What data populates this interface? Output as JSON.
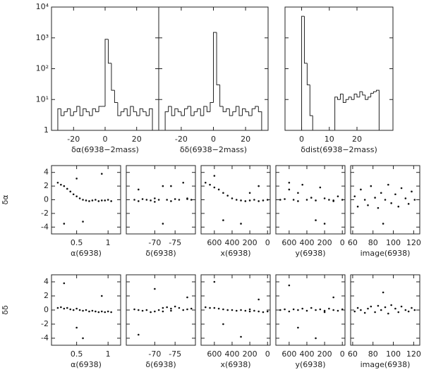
{
  "chart_data": [
    {
      "type": "histogram",
      "xlabel": "δα(6938−2mass)",
      "log_y": true,
      "bins": [
        -30,
        -28,
        -26,
        -24,
        -22,
        -20,
        -18,
        -16,
        -14,
        -12,
        -10,
        -8,
        -6,
        -4,
        -2,
        0,
        2,
        4,
        6,
        8,
        10,
        12,
        14,
        16,
        18,
        20,
        22,
        24,
        26,
        28,
        30
      ],
      "values": [
        5,
        3,
        4,
        5,
        3,
        4,
        6,
        3,
        5,
        4,
        3,
        5,
        4,
        6,
        6,
        900,
        150,
        20,
        8,
        3,
        4,
        5,
        3,
        6,
        4,
        3,
        5,
        4,
        3,
        5
      ],
      "xlim": [
        -34,
        34
      ],
      "xticks": [
        -20,
        0,
        20
      ],
      "ylim": [
        1,
        10000
      ],
      "yticks": [
        1,
        {
          "value": 10,
          "label": "10¹"
        },
        {
          "value": 100,
          "label": "10²"
        },
        {
          "value": 1000,
          "label": "10³"
        },
        {
          "value": 10000,
          "label": "10⁴"
        }
      ]
    },
    {
      "type": "histogram",
      "xlabel": "δδ(6938−2mass)",
      "log_y": true,
      "bins": [
        -30,
        -28,
        -26,
        -24,
        -22,
        -20,
        -18,
        -16,
        -14,
        -12,
        -10,
        -8,
        -6,
        -4,
        -2,
        0,
        2,
        4,
        6,
        8,
        10,
        12,
        14,
        16,
        18,
        20,
        22,
        24,
        26,
        28,
        30
      ],
      "values": [
        4,
        6,
        3,
        5,
        4,
        3,
        5,
        6,
        3,
        4,
        5,
        3,
        6,
        4,
        8,
        1500,
        30,
        6,
        4,
        5,
        3,
        4,
        6,
        3,
        5,
        4,
        3,
        5,
        6,
        4
      ],
      "xlim": [
        -34,
        34
      ],
      "xticks": [
        -20,
        0,
        20
      ],
      "ylim": [
        1,
        10000
      ],
      "yticks": [
        1,
        {
          "value": 10,
          "label": "10¹"
        },
        {
          "value": 100,
          "label": "10²"
        },
        {
          "value": 1000,
          "label": "10³"
        },
        {
          "value": 10000,
          "label": "10⁴"
        }
      ]
    },
    {
      "type": "histogram",
      "xlabel": "δdist(6938−2mass)",
      "log_y": true,
      "bins": [
        -3,
        -2,
        -1,
        0,
        1,
        2,
        3,
        4,
        5,
        6,
        7,
        8,
        9,
        10,
        11,
        12,
        13,
        14,
        15,
        16,
        17,
        18,
        19,
        20,
        21,
        22,
        23,
        24,
        25,
        26,
        27,
        28
      ],
      "values": [
        1,
        1,
        1,
        5000,
        150,
        30,
        3,
        1,
        1,
        1,
        1,
        1,
        1,
        1,
        1,
        12,
        10,
        15,
        8,
        10,
        12,
        10,
        15,
        12,
        18,
        14,
        10,
        12,
        16,
        18,
        20
      ],
      "xlim": [
        -6,
        33
      ],
      "xticks": [
        0,
        10,
        20
      ],
      "ylim": [
        1,
        10000
      ],
      "yticks": [
        1,
        {
          "value": 10,
          "label": "10¹"
        },
        {
          "value": 100,
          "label": "10²"
        },
        {
          "value": 1000,
          "label": "10³"
        },
        {
          "value": 10000,
          "label": "10⁴"
        }
      ]
    },
    {
      "type": "scatter",
      "xlabel": "α(6938)",
      "ylabel": "δα",
      "x": [
        0.2,
        0.25,
        0.3,
        0.35,
        0.4,
        0.45,
        0.5,
        0.55,
        0.6,
        0.65,
        0.7,
        0.75,
        0.8,
        0.85,
        0.9,
        0.95,
        1.0,
        1.05,
        0.3,
        0.6,
        0.9,
        0.5
      ],
      "values": [
        2.5,
        2.2,
        2.0,
        1.6,
        1.2,
        0.8,
        0.5,
        0.2,
        0.0,
        -0.1,
        -0.2,
        -0.1,
        0,
        -0.2,
        -0.1,
        -0.1,
        0,
        -0.2,
        -3.5,
        -3.2,
        3.8,
        3.1
      ],
      "xlim": [
        0.1,
        1.2
      ],
      "xticks": [
        0.5,
        1
      ],
      "ylim": [
        -5,
        5
      ],
      "yticks": [
        -4,
        -2,
        0,
        2,
        4
      ]
    },
    {
      "type": "scatter",
      "xlabel": "δ(6938)",
      "x": [
        -65,
        -66,
        -67,
        -68,
        -69,
        -70,
        -71,
        -72,
        -73,
        -74,
        -75,
        -76,
        -77,
        -78,
        -79,
        -66,
        -70,
        -74,
        -78,
        -72
      ],
      "values": [
        0,
        -0.2,
        0.1,
        0,
        -0.1,
        0.2,
        0,
        2,
        0,
        -0.2,
        0.1,
        0,
        2.5,
        0.1,
        0,
        1.5,
        -0.3,
        2,
        0.2,
        -3.5
      ],
      "xlim": [
        -63,
        -80
      ],
      "xticks": [
        -70,
        -75
      ],
      "ylim": [
        -5,
        5
      ],
      "yticks": [
        -4,
        -2,
        0,
        2,
        4
      ]
    },
    {
      "type": "scatter",
      "xlabel": "x(6938)",
      "x": [
        700,
        650,
        600,
        550,
        500,
        450,
        400,
        350,
        300,
        250,
        200,
        150,
        100,
        50,
        0,
        600,
        300,
        100,
        500,
        200
      ],
      "values": [
        2.5,
        2.2,
        1.8,
        1.5,
        1.0,
        0.6,
        0.2,
        0,
        -0.1,
        -0.2,
        -0.1,
        0,
        -0.2,
        -0.1,
        0,
        3.5,
        -3.5,
        2.0,
        -3.0,
        1.0
      ],
      "xlim": [
        750,
        -30
      ],
      "xticks": [
        600,
        400,
        200,
        0
      ],
      "ylim": [
        -5,
        5
      ],
      "yticks": [
        -4,
        -2,
        0,
        2,
        4
      ]
    },
    {
      "type": "scatter",
      "xlabel": "y(6938)",
      "x": [
        700,
        650,
        600,
        550,
        500,
        450,
        400,
        350,
        300,
        250,
        200,
        150,
        100,
        50,
        0,
        600,
        300,
        100,
        500,
        200
      ],
      "values": [
        0,
        0.1,
        1.5,
        0,
        -0.2,
        2.2,
        0,
        0.3,
        -0.1,
        1.8,
        0.2,
        0,
        -0.1,
        0.5,
        0,
        2.5,
        -3,
        -0.2,
        1,
        -3.5
      ],
      "xlim": [
        750,
        -30
      ],
      "xticks": [
        600,
        400,
        200,
        0
      ],
      "ylim": [
        -5,
        5
      ],
      "yticks": [
        -4,
        -2,
        0,
        2,
        4
      ]
    },
    {
      "type": "scatter",
      "xlabel": "image(6938)",
      "x": [
        62,
        65,
        68,
        72,
        75,
        78,
        82,
        85,
        88,
        92,
        95,
        98,
        102,
        105,
        108,
        112,
        115,
        118,
        121,
        90
      ],
      "values": [
        0.5,
        -1,
        1.5,
        0,
        -0.8,
        2,
        0.3,
        -1.2,
        1,
        0,
        2.2,
        -0.5,
        0.8,
        -1,
        1.7,
        0.2,
        -0.6,
        1.2,
        0,
        -3.5
      ],
      "xlim": [
        58,
        126
      ],
      "xticks": [
        60,
        80,
        100,
        120
      ],
      "ylim": [
        -5,
        5
      ],
      "yticks": [
        -4,
        -2,
        0,
        2,
        4
      ]
    },
    {
      "type": "scatter",
      "xlabel": "α(6938)",
      "ylabel": "δδ",
      "x": [
        0.2,
        0.25,
        0.3,
        0.35,
        0.4,
        0.45,
        0.5,
        0.55,
        0.6,
        0.65,
        0.7,
        0.75,
        0.8,
        0.85,
        0.9,
        0.95,
        1.0,
        1.05,
        0.3,
        0.6,
        0.9,
        0.5
      ],
      "values": [
        0.3,
        0.4,
        0.2,
        0.3,
        0.1,
        0,
        0.2,
        0,
        -0.1,
        0,
        -0.2,
        -0.1,
        -0.2,
        -0.3,
        -0.2,
        -0.3,
        -0.2,
        -0.3,
        3.8,
        -4,
        2,
        -2.5
      ],
      "xlim": [
        0.1,
        1.2
      ],
      "xticks": [
        0.5,
        1
      ],
      "ylim": [
        -5,
        5
      ],
      "yticks": [
        -4,
        -2,
        0,
        2,
        4
      ]
    },
    {
      "type": "scatter",
      "xlabel": "δ(6938)",
      "x": [
        -65,
        -66,
        -67,
        -68,
        -69,
        -70,
        -71,
        -72,
        -73,
        -74,
        -75,
        -76,
        -77,
        -78,
        -79,
        -66,
        -70,
        -74,
        -78,
        -72
      ],
      "values": [
        0.1,
        0,
        -0.1,
        0,
        -0.3,
        -0.2,
        0,
        0.3,
        0.4,
        0.2,
        0.5,
        0.3,
        0,
        0.1,
        0.2,
        -3.5,
        3,
        -0.1,
        1.8,
        -0.2
      ],
      "xlim": [
        -63,
        -80
      ],
      "xticks": [
        -70,
        -75
      ],
      "ylim": [
        -5,
        5
      ],
      "yticks": [
        -4,
        -2,
        0,
        2,
        4
      ]
    },
    {
      "type": "scatter",
      "xlabel": "x(6938)",
      "x": [
        700,
        650,
        600,
        550,
        500,
        450,
        400,
        350,
        300,
        250,
        200,
        150,
        100,
        50,
        0,
        600,
        300,
        100,
        500,
        200
      ],
      "values": [
        0.4,
        0.3,
        0.3,
        0.2,
        0.1,
        0,
        0,
        -0.1,
        0,
        -0.1,
        -0.2,
        -0.1,
        -0.2,
        -0.3,
        -0.2,
        4,
        -3.8,
        1.5,
        -2,
        0.1
      ],
      "xlim": [
        750,
        -30
      ],
      "xticks": [
        600,
        400,
        200,
        0
      ],
      "ylim": [
        -5,
        5
      ],
      "yticks": [
        -4,
        -2,
        0,
        2,
        4
      ]
    },
    {
      "type": "scatter",
      "xlabel": "y(6938)",
      "x": [
        700,
        650,
        600,
        550,
        500,
        450,
        400,
        350,
        300,
        250,
        200,
        150,
        100,
        50,
        0,
        600,
        300,
        100,
        500,
        200
      ],
      "values": [
        0,
        0.1,
        -0.2,
        0.1,
        0,
        0.2,
        -0.1,
        0.3,
        0,
        0.1,
        -0.1,
        0.2,
        0,
        -0.1,
        0.1,
        3.5,
        -4,
        1.8,
        -2.5,
        -0.3
      ],
      "xlim": [
        750,
        -30
      ],
      "xticks": [
        600,
        400,
        200,
        0
      ],
      "ylim": [
        -5,
        5
      ],
      "yticks": [
        -4,
        -2,
        0,
        2,
        4
      ]
    },
    {
      "type": "scatter",
      "xlabel": "image(6938)",
      "x": [
        62,
        65,
        68,
        72,
        75,
        78,
        82,
        85,
        88,
        92,
        95,
        98,
        102,
        105,
        108,
        112,
        115,
        118,
        121,
        90
      ],
      "values": [
        -0.2,
        0.3,
        0,
        -0.4,
        0.2,
        0.5,
        -0.3,
        0.6,
        0,
        0.4,
        -0.5,
        0.7,
        0.2,
        -0.3,
        0.5,
        0,
        -0.2,
        0.3,
        0,
        2.5
      ],
      "xlim": [
        58,
        126
      ],
      "xticks": [
        60,
        80,
        100,
        120
      ],
      "ylim": [
        -5,
        5
      ],
      "yticks": [
        -4,
        -2,
        0,
        2,
        4
      ]
    }
  ]
}
